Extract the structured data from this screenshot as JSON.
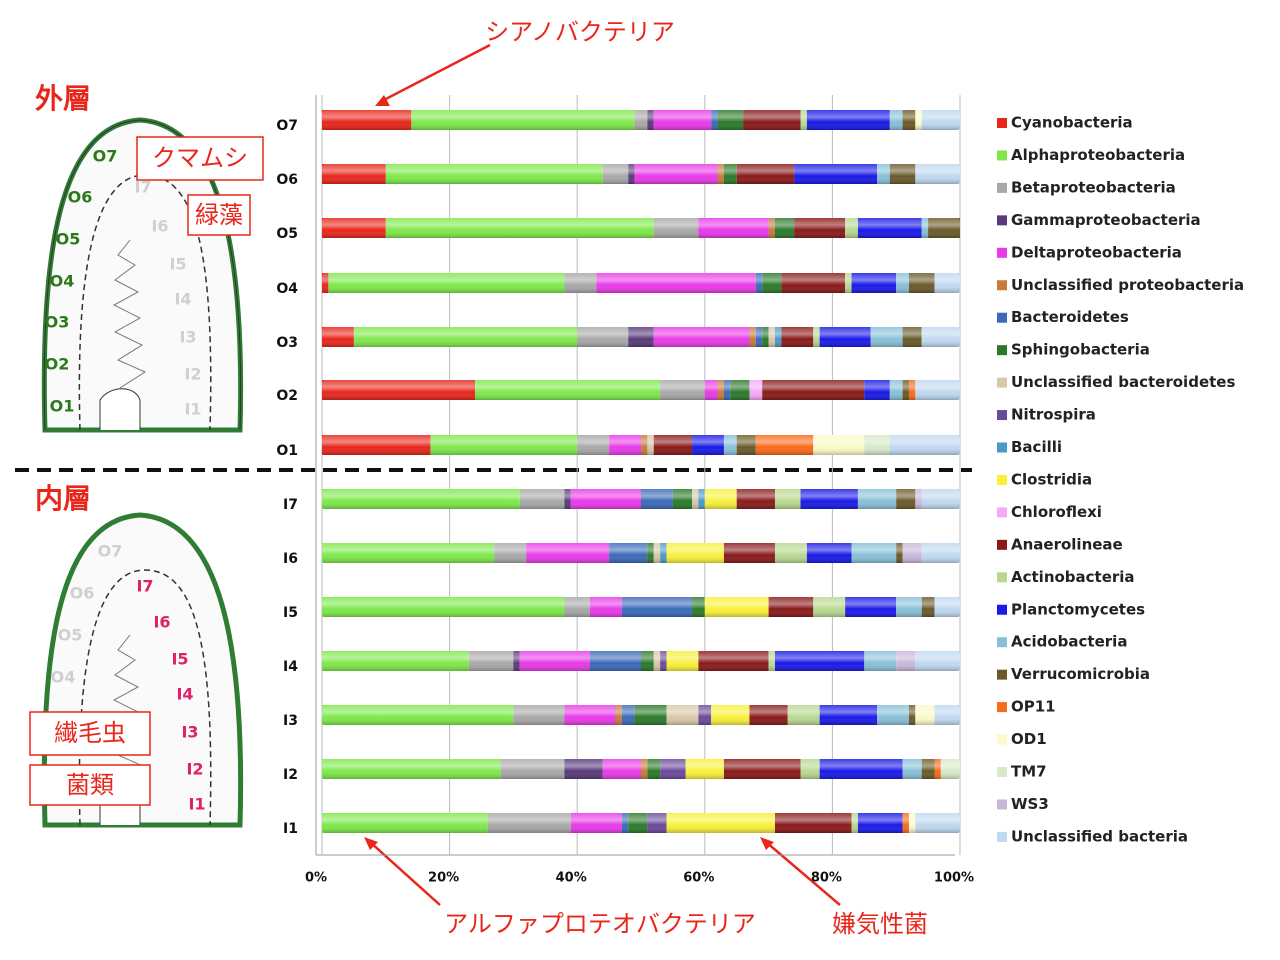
{
  "chart_data": {
    "type": "stacked_bar_horizontal",
    "annotations": [
      "シアノバクテリア",
      "アルファプロテオバクテリア",
      "嫌気性菌"
    ],
    "categories": [
      "O7",
      "O6",
      "O5",
      "O4",
      "O3",
      "O2",
      "O1",
      "I7",
      "I6",
      "I5",
      "I4",
      "I3",
      "I2",
      "I1"
    ],
    "xlim": [
      0,
      100
    ],
    "xticks": [
      {
        "value": 0,
        "label": "0%"
      },
      {
        "value": 20,
        "label": "20%"
      },
      {
        "value": 40,
        "label": "40%"
      },
      {
        "value": 60,
        "label": "60%"
      },
      {
        "value": 80,
        "label": "80%"
      },
      {
        "value": 100,
        "label": "100%"
      }
    ],
    "grid": true,
    "legend": "right",
    "series": [
      {
        "name": "Cyanobacteria",
        "color": "#e8261a",
        "values": [
          14,
          10,
          10,
          1,
          5,
          24,
          17,
          0,
          0,
          0,
          0,
          0,
          0,
          0
        ]
      },
      {
        "name": "Alphaproteobacteria",
        "color": "#7ee84a",
        "values": [
          35,
          34,
          42,
          37,
          35,
          29,
          23,
          31,
          27,
          38,
          23,
          30,
          28,
          26
        ]
      },
      {
        "name": "Betaproteobacteria",
        "color": "#a8a8a8",
        "values": [
          2,
          4,
          7,
          5,
          8,
          7,
          5,
          7,
          5,
          4,
          7,
          8,
          10,
          13
        ]
      },
      {
        "name": "Gammaproteobacteria",
        "color": "#5a3a7a",
        "values": [
          1,
          1,
          0,
          0,
          4,
          0,
          0,
          1,
          0,
          0,
          1,
          0,
          6,
          0
        ]
      },
      {
        "name": "Deltaproteobacteria",
        "color": "#e83ae8",
        "values": [
          9,
          13,
          11,
          25,
          15,
          2,
          5,
          11,
          13,
          5,
          11,
          8,
          6,
          8
        ]
      },
      {
        "name": "Unclassified proteobacteria",
        "color": "#c87a3a",
        "values": [
          0,
          1,
          1,
          0,
          1,
          1,
          1,
          0,
          0,
          0,
          0,
          1,
          1,
          0
        ]
      },
      {
        "name": "Bacteroidetes",
        "color": "#3a6ab8",
        "values": [
          1,
          0,
          0,
          1,
          1,
          1,
          0,
          5,
          6,
          11,
          8,
          2,
          0,
          1
        ]
      },
      {
        "name": "Sphingobacteria",
        "color": "#2a7a2a",
        "values": [
          4,
          2,
          3,
          3,
          1,
          3,
          0,
          3,
          1,
          2,
          2,
          5,
          2,
          3
        ]
      },
      {
        "name": "Unclassified bacteroidetes",
        "color": "#d8c8a8",
        "values": [
          0,
          0,
          0,
          0,
          1,
          0,
          1,
          1,
          1,
          0,
          1,
          5,
          0,
          0
        ]
      },
      {
        "name": "Nitrospira",
        "color": "#6a4a9a",
        "values": [
          0,
          0,
          0,
          0,
          0,
          0,
          0,
          0,
          0,
          0,
          1,
          2,
          4,
          3
        ]
      },
      {
        "name": "Bacilli",
        "color": "#4a9ac8",
        "values": [
          0,
          0,
          0,
          0,
          1,
          0,
          0,
          1,
          1,
          0,
          0,
          0,
          0,
          0
        ]
      },
      {
        "name": "Clostridia",
        "color": "#f8f03a",
        "values": [
          0,
          0,
          0,
          0,
          0,
          0,
          0,
          5,
          9,
          10,
          5,
          6,
          6,
          17
        ]
      },
      {
        "name": "Chloroflexi",
        "color": "#f8a8f8",
        "values": [
          0,
          0,
          0,
          0,
          0,
          2,
          0,
          0,
          0,
          0,
          0,
          0,
          0,
          0
        ]
      },
      {
        "name": "Anaerolineae",
        "color": "#8a1a1a",
        "values": [
          9,
          9,
          8,
          10,
          5,
          16,
          6,
          6,
          8,
          7,
          11,
          6,
          12,
          12
        ]
      },
      {
        "name": "Actinobacteria",
        "color": "#b8d890",
        "values": [
          1,
          0,
          2,
          1,
          1,
          0,
          0,
          4,
          5,
          5,
          1,
          5,
          3,
          1
        ]
      },
      {
        "name": "Planctomycetes",
        "color": "#1a1ae8",
        "values": [
          13,
          13,
          10,
          7,
          8,
          4,
          5,
          9,
          7,
          8,
          14,
          9,
          13,
          7
        ]
      },
      {
        "name": "Acidobacteria",
        "color": "#88c0d8",
        "values": [
          2,
          2,
          1,
          2,
          5,
          2,
          2,
          6,
          7,
          4,
          5,
          5,
          3,
          0
        ]
      },
      {
        "name": "Verrucomicrobia",
        "color": "#6a5a2a",
        "values": [
          2,
          4,
          5,
          4,
          3,
          1,
          3,
          3,
          1,
          2,
          0,
          1,
          2,
          0
        ]
      },
      {
        "name": "OP11",
        "color": "#f86a1a",
        "values": [
          0,
          0,
          0,
          0,
          0,
          1,
          9,
          0,
          0,
          0,
          0,
          0,
          1,
          1
        ]
      },
      {
        "name": "OD1",
        "color": "#fafac8",
        "values": [
          1,
          0,
          0,
          0,
          0,
          0,
          8,
          0,
          0,
          0,
          0,
          3,
          0,
          1
        ]
      },
      {
        "name": "TM7",
        "color": "#d8e8c8",
        "values": [
          0,
          0,
          0,
          0,
          0,
          0,
          4,
          0,
          0,
          0,
          0,
          0,
          3,
          0
        ]
      },
      {
        "name": "WS3",
        "color": "#c8b8d8",
        "values": [
          0,
          0,
          0,
          0,
          0,
          0,
          0,
          1,
          3,
          0,
          3,
          0,
          0,
          0
        ]
      },
      {
        "name": "Unclassified bacteria",
        "color": "#c0d8f0",
        "values": [
          6,
          7,
          0,
          4,
          6,
          7,
          11,
          6,
          6,
          4,
          7,
          4,
          0,
          7
        ]
      }
    ]
  },
  "diagram": {
    "outer_title": "外層",
    "inner_title": "内層",
    "callouts": [
      "クマムシ",
      "緑藻",
      "繊毛虫",
      "菌類"
    ]
  }
}
